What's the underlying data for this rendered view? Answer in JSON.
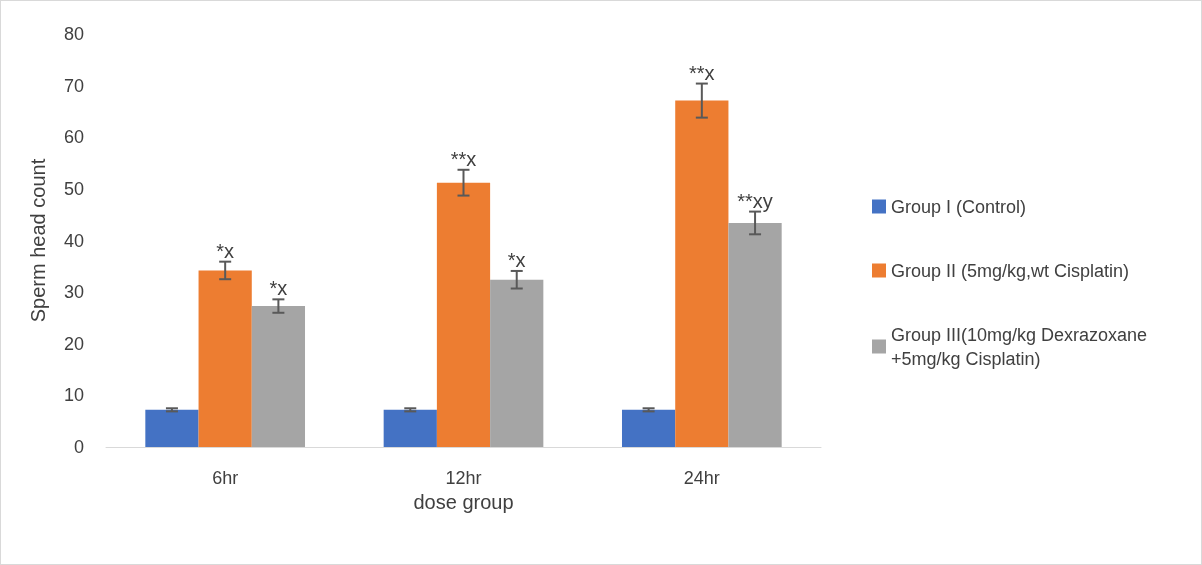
{
  "chart_data": {
    "type": "bar",
    "xlabel": "dose group",
    "ylabel": "Sperm head count",
    "categories": [
      "6hr",
      "12hr",
      "24hr"
    ],
    "series": [
      {
        "name": "Group I (Control)",
        "color": "#4472c4",
        "values": [
          7.2,
          7.2,
          7.2
        ],
        "errors": [
          0.3,
          0.3,
          0.3
        ]
      },
      {
        "name": "Group II (5mg/kg,wt Cisplatin)",
        "color": "#ed7d31",
        "values": [
          34.2,
          51.2,
          67.1
        ],
        "errors": [
          1.7,
          2.5,
          3.3
        ],
        "value_labels": [
          "*x",
          "**x",
          "**x"
        ]
      },
      {
        "name": "Group III(10mg/kg Dexrazoxane +5mg/kg Cisplatin)",
        "color": "#a5a5a5",
        "values": [
          27.3,
          32.4,
          43.4
        ],
        "errors": [
          1.3,
          1.7,
          2.2
        ],
        "value_labels": [
          "*x",
          "*x",
          "**xy"
        ]
      }
    ],
    "ylim": [
      0,
      80
    ],
    "yticks": [
      0,
      10,
      20,
      30,
      40,
      50,
      60,
      70,
      80
    ],
    "grid": false,
    "legend": "right"
  }
}
